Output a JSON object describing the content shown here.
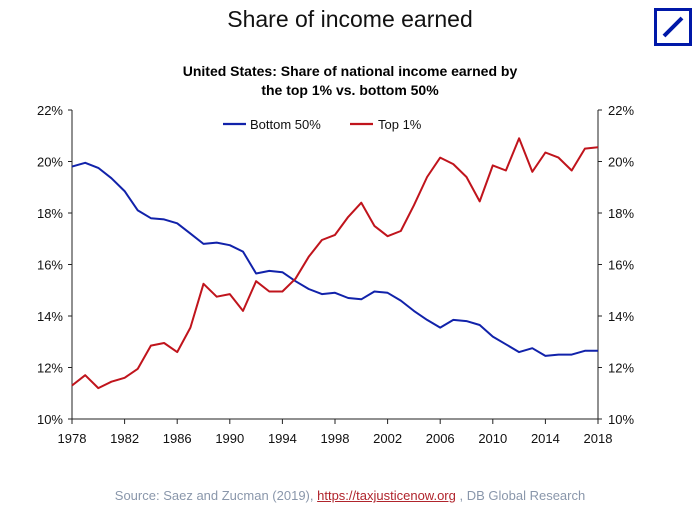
{
  "header": {
    "title": "Share of income earned",
    "logo_icon": "deutsche-bank-logo-icon",
    "logo_color": "#0018a8"
  },
  "chart_data": {
    "type": "line",
    "title": "United States: Share of national income earned by the top 1% vs. bottom 50%",
    "title_lines": [
      "United States: Share of national income earned by",
      "the top 1% vs. bottom 50%"
    ],
    "xlabel": "",
    "ylabel": "",
    "xlim": [
      1978,
      2018
    ],
    "ylim": [
      10,
      22
    ],
    "x_ticks": [
      1978,
      1982,
      1986,
      1990,
      1994,
      1998,
      2002,
      2006,
      2010,
      2014,
      2018
    ],
    "y_ticks": [
      10,
      12,
      14,
      16,
      18,
      20,
      22
    ],
    "y_tick_labels": [
      "10%",
      "12%",
      "14%",
      "16%",
      "18%",
      "20%",
      "22%"
    ],
    "legend_position": "top-center",
    "grid": false,
    "x": [
      1978,
      1979,
      1980,
      1981,
      1982,
      1983,
      1984,
      1985,
      1986,
      1987,
      1988,
      1989,
      1990,
      1991,
      1992,
      1993,
      1994,
      1995,
      1996,
      1997,
      1998,
      1999,
      2000,
      2001,
      2002,
      2003,
      2004,
      2005,
      2006,
      2007,
      2008,
      2009,
      2010,
      2011,
      2012,
      2013,
      2014,
      2015,
      2016,
      2017,
      2018
    ],
    "series": [
      {
        "name": "Bottom 50%",
        "color": "#1122aa",
        "values": [
          19.8,
          19.95,
          19.75,
          19.35,
          18.85,
          18.1,
          17.8,
          17.75,
          17.6,
          17.2,
          16.8,
          16.85,
          16.75,
          16.5,
          15.65,
          15.75,
          15.7,
          15.35,
          15.05,
          14.85,
          14.9,
          14.7,
          14.65,
          14.95,
          14.9,
          14.6,
          14.2,
          13.85,
          13.55,
          13.85,
          13.8,
          13.65,
          13.2,
          12.9,
          12.6,
          12.75,
          12.45,
          12.5,
          12.5,
          12.65,
          12.65
        ]
      },
      {
        "name": "Top 1%",
        "color": "#c0141c",
        "values": [
          11.3,
          11.7,
          11.2,
          11.45,
          11.6,
          11.95,
          12.85,
          12.95,
          12.6,
          13.55,
          15.25,
          14.75,
          14.85,
          14.2,
          15.35,
          14.95,
          14.95,
          15.45,
          16.3,
          16.95,
          17.15,
          17.85,
          18.4,
          17.5,
          17.1,
          17.3,
          18.3,
          19.4,
          20.15,
          19.9,
          19.4,
          18.45,
          19.85,
          19.65,
          20.9,
          19.6,
          20.35,
          20.15,
          19.65,
          20.5,
          20.55
        ]
      }
    ]
  },
  "footer": {
    "source_prefix": "Source: Saez and Zucman (2019), ",
    "source_link": "https://taxjusticenow.org",
    "source_suffix": " , DB Global Research"
  }
}
